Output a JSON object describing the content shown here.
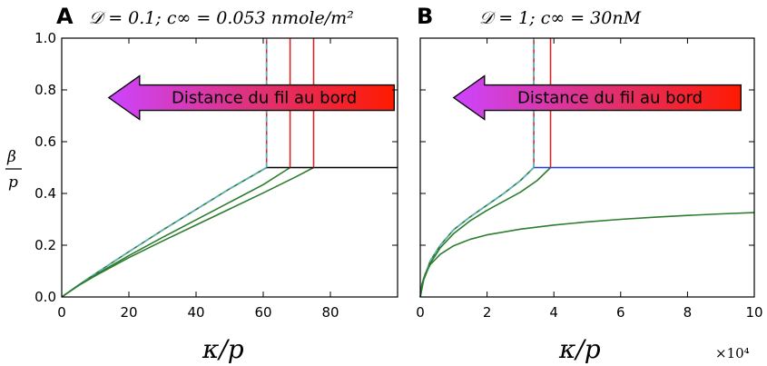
{
  "chart_data": [
    {
      "type": "line",
      "panel_label": "A",
      "title": "𝒟 = 0.1;  c∞ = 0.053 nmole/m²",
      "xlabel": "κ/p",
      "ylabel_num": "β",
      "ylabel_den": "p",
      "xlim": [
        0,
        100
      ],
      "ylim": [
        0,
        1
      ],
      "xticks": [
        0,
        20,
        40,
        60,
        80
      ],
      "yticks": [
        0.0,
        0.2,
        0.4,
        0.6,
        0.8,
        1.0
      ],
      "xtick_labels": [
        "0",
        "20",
        "40",
        "60",
        "80"
      ],
      "ytick_labels": [
        "0.0",
        "0.2",
        "0.4",
        "0.6",
        "0.8",
        "1.0"
      ],
      "grid": false,
      "arrow_label": "Distance du fil au bord",
      "arrow_x": [
        99,
        14
      ],
      "arrow_y": 0.77,
      "colors": {
        "green": "#2e7d2e",
        "red": "#d62728",
        "cyan_dash": "#5fb0c0",
        "black": "#000000",
        "blue": "#1f3fcc"
      },
      "series": [
        {
          "color": "green",
          "style": "solid",
          "x": [
            0,
            5,
            10,
            20,
            30,
            40,
            50,
            61
          ],
          "y": [
            0,
            0.046,
            0.09,
            0.175,
            0.258,
            0.338,
            0.418,
            0.5
          ]
        },
        {
          "color": "cyan_dash",
          "style": "dashed",
          "x": [
            0,
            5,
            10,
            20,
            30,
            40,
            50,
            61
          ],
          "y": [
            0,
            0.046,
            0.09,
            0.175,
            0.258,
            0.338,
            0.418,
            0.5
          ]
        },
        {
          "color": "green",
          "style": "solid",
          "x": [
            0,
            5,
            10,
            20,
            30,
            40,
            50,
            60,
            68
          ],
          "y": [
            0,
            0.045,
            0.085,
            0.16,
            0.23,
            0.298,
            0.366,
            0.434,
            0.5
          ]
        },
        {
          "color": "green",
          "style": "solid",
          "x": [
            0,
            5,
            10,
            20,
            30,
            40,
            50,
            60,
            70,
            75
          ],
          "y": [
            0,
            0.044,
            0.082,
            0.152,
            0.216,
            0.278,
            0.34,
            0.402,
            0.466,
            0.5
          ]
        },
        {
          "color": "black",
          "style": "solid",
          "x": [
            61,
            100
          ],
          "y": [
            0.5,
            0.5
          ]
        },
        {
          "color": "red",
          "style": "solid",
          "x": [
            61,
            61
          ],
          "y": [
            0.5,
            1.0
          ]
        },
        {
          "color": "cyan_dash",
          "style": "dashed",
          "x": [
            61,
            61
          ],
          "y": [
            0.5,
            1.0
          ]
        },
        {
          "color": "red",
          "style": "solid",
          "x": [
            68,
            68
          ],
          "y": [
            0.5,
            1.0
          ]
        },
        {
          "color": "red",
          "style": "solid",
          "x": [
            75,
            75
          ],
          "y": [
            0.5,
            1.0
          ]
        }
      ]
    },
    {
      "type": "line",
      "panel_label": "B",
      "title": "𝒟 = 1;  c∞ = 30nM",
      "xlabel": "κ/p",
      "multiplier": "×10⁴",
      "xlim": [
        0,
        10
      ],
      "ylim": [
        0,
        1
      ],
      "xticks": [
        0,
        2,
        4,
        6,
        8,
        10
      ],
      "xtick_labels": [
        "0",
        "2",
        "4",
        "6",
        "8",
        "10"
      ],
      "grid": false,
      "arrow_label": "Distance du fil au bord",
      "arrow_x": [
        9.6,
        1.0
      ],
      "arrow_y": 0.77,
      "colors": {
        "green": "#2e7d2e",
        "red": "#d62728",
        "cyan_dash": "#5fb0c0",
        "black": "#000000",
        "blue": "#1f3fcc"
      },
      "series": [
        {
          "color": "green",
          "style": "solid",
          "x": [
            0,
            0.1,
            0.3,
            0.6,
            1.0,
            1.5,
            2.0,
            2.5,
            3.0,
            3.4
          ],
          "y": [
            0,
            0.07,
            0.14,
            0.2,
            0.26,
            0.31,
            0.355,
            0.4,
            0.45,
            0.5
          ]
        },
        {
          "color": "cyan_dash",
          "style": "dashed",
          "x": [
            0,
            0.1,
            0.3,
            0.6,
            1.0,
            1.5,
            2.0,
            2.5,
            3.0,
            3.4
          ],
          "y": [
            0,
            0.07,
            0.14,
            0.2,
            0.26,
            0.31,
            0.355,
            0.4,
            0.45,
            0.5
          ]
        },
        {
          "color": "green",
          "style": "solid",
          "x": [
            0,
            0.1,
            0.3,
            0.6,
            1.0,
            1.5,
            2.0,
            2.5,
            3.0,
            3.5,
            3.9
          ],
          "y": [
            0,
            0.065,
            0.13,
            0.19,
            0.245,
            0.295,
            0.335,
            0.37,
            0.405,
            0.45,
            0.5
          ]
        },
        {
          "color": "green",
          "style": "solid",
          "x": [
            0,
            0.05,
            0.15,
            0.3,
            0.6,
            1.0,
            1.5,
            2,
            3,
            4,
            5,
            6,
            7,
            8,
            9,
            10
          ],
          "y": [
            0,
            0.05,
            0.09,
            0.125,
            0.165,
            0.198,
            0.223,
            0.24,
            0.262,
            0.278,
            0.29,
            0.3,
            0.308,
            0.315,
            0.321,
            0.326
          ]
        },
        {
          "color": "blue",
          "style": "solid",
          "x": [
            3.4,
            10
          ],
          "y": [
            0.5,
            0.5
          ]
        },
        {
          "color": "red",
          "style": "solid",
          "x": [
            3.4,
            3.4
          ],
          "y": [
            0.5,
            1.0
          ]
        },
        {
          "color": "cyan_dash",
          "style": "dashed",
          "x": [
            3.4,
            3.4
          ],
          "y": [
            0.5,
            1.0
          ]
        },
        {
          "color": "red",
          "style": "solid",
          "x": [
            3.9,
            3.9
          ],
          "y": [
            0.5,
            1.0
          ]
        }
      ]
    }
  ]
}
